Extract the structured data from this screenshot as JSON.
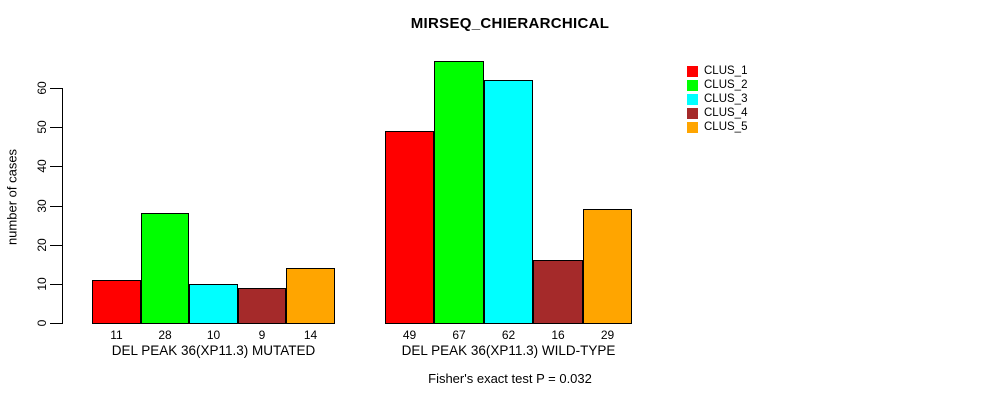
{
  "title": "MIRSEQ_CHIERARCHICAL",
  "annotation": "Fisher's exact test P = 0.032",
  "chart_data": {
    "type": "bar",
    "title": "MIRSEQ_CHIERARCHICAL",
    "xlabel": "",
    "ylabel": "number of cases",
    "ylim": [
      0,
      60
    ],
    "yticks": [
      0,
      10,
      20,
      30,
      40,
      50,
      60
    ],
    "grid": false,
    "legend_position": "right-outside",
    "annotation": "Fisher's exact test P = 0.032",
    "series": [
      "CLUS_1",
      "CLUS_2",
      "CLUS_3",
      "CLUS_4",
      "CLUS_5"
    ],
    "colors": [
      "#FF0000",
      "#00FF00",
      "#00FFFF",
      "#A52A2A",
      "#FFA500"
    ],
    "groups": [
      {
        "label": "DEL PEAK 36(XP11.3) MUTATED",
        "values": [
          11,
          28,
          10,
          9,
          14
        ]
      },
      {
        "label": "DEL PEAK 36(XP11.3) WILD-TYPE",
        "values": [
          49,
          67,
          62,
          16,
          29
        ]
      }
    ]
  }
}
